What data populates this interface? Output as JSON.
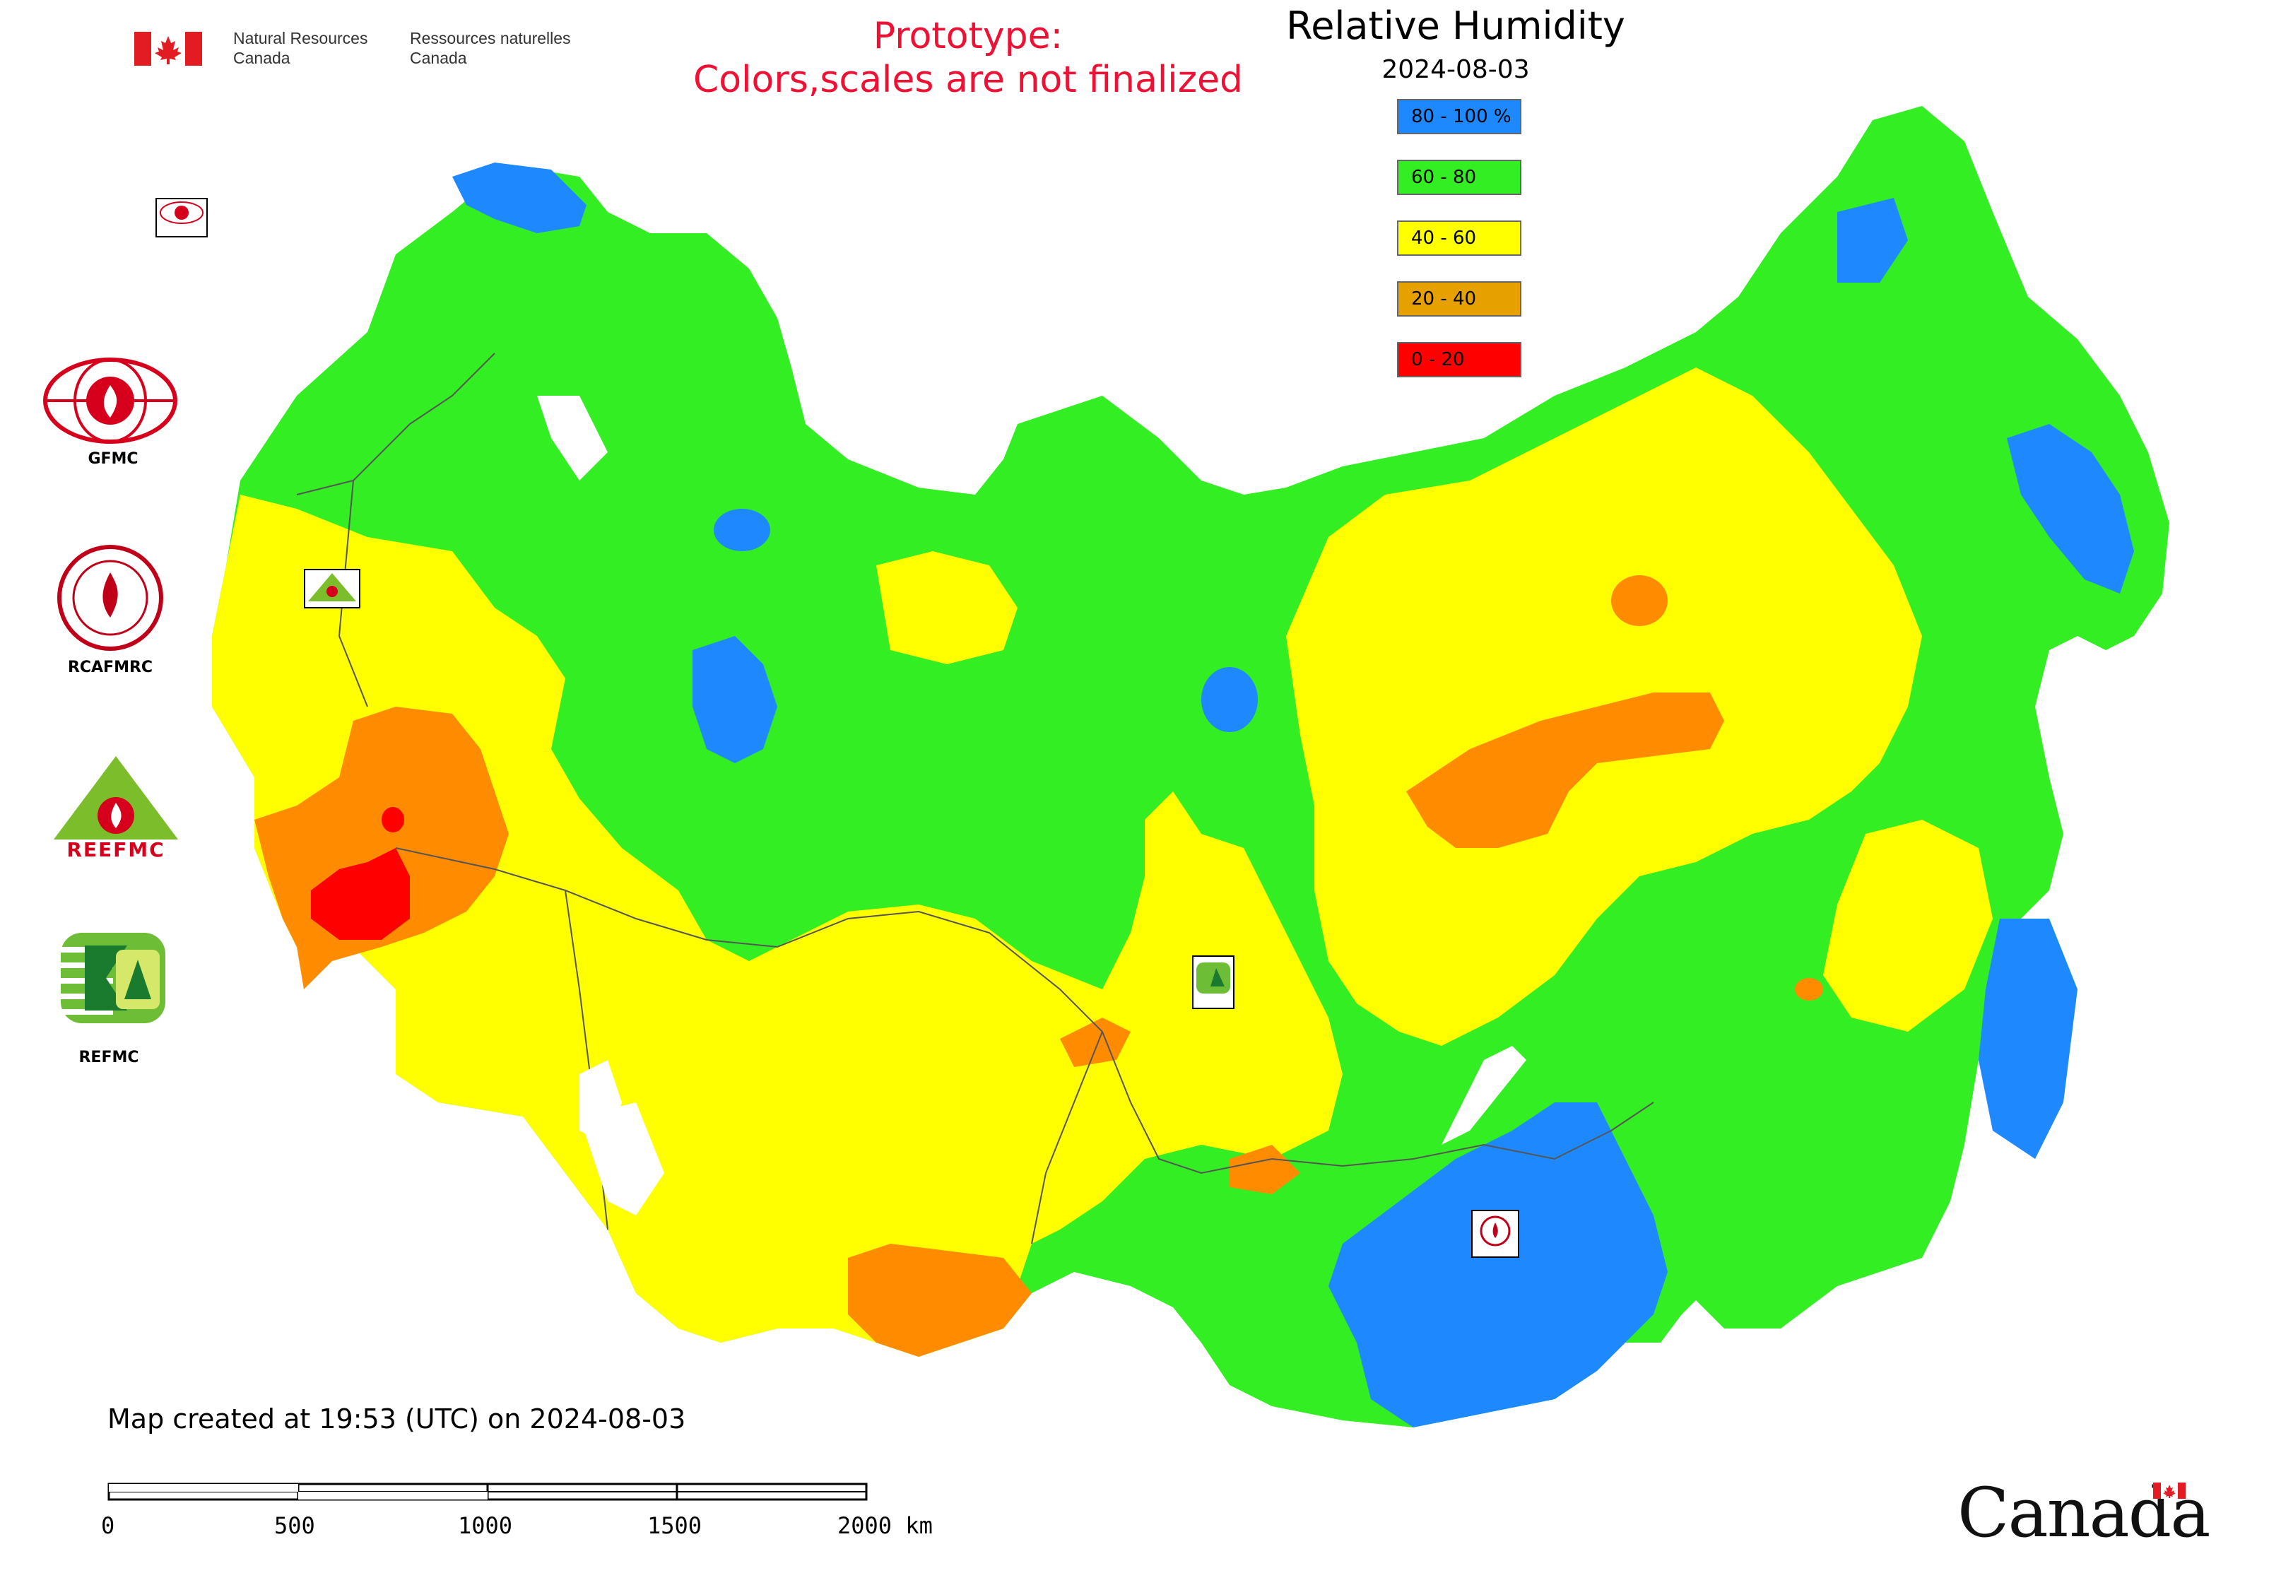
{
  "header": {
    "dept_en_line1": "Natural Resources",
    "dept_en_line2": "Canada",
    "dept_fr_line1": "Ressources naturelles",
    "dept_fr_line2": "Canada",
    "prototype_line1": "Prototype:",
    "prototype_line2": "Colors,scales are not finalized"
  },
  "legend": {
    "title": "Relative Humidity",
    "date": "2024-08-03",
    "items": [
      {
        "label": "80 - 100 %",
        "color": "#1e88ff"
      },
      {
        "label": "60 - 80",
        "color": "#33ee22"
      },
      {
        "label": "40 - 60",
        "color": "#ffff00"
      },
      {
        "label": "20 - 40",
        "color": "#e6a000"
      },
      {
        "label": "0 - 20",
        "color": "#ff0000"
      }
    ]
  },
  "map_colors": {
    "blue": "#1e88ff",
    "green": "#33ee22",
    "yellow": "#ffff00",
    "orange": "#ff8c00",
    "red": "#ff0000"
  },
  "logos": {
    "gfmc": "GFMC",
    "rcafmrc": "RCAFMRC",
    "reefmc": "REEFMC",
    "refmc": "REFMC",
    "reefmc_text": "REEFMC",
    "rcafmrc_short": "RCAFMRC"
  },
  "footer": {
    "created": "Map created at 19:53 (UTC) on 2024-08-03",
    "scale_ticks": [
      "0",
      "500",
      "1000",
      "1500",
      "2000 km"
    ]
  },
  "wordmark": "Canada"
}
